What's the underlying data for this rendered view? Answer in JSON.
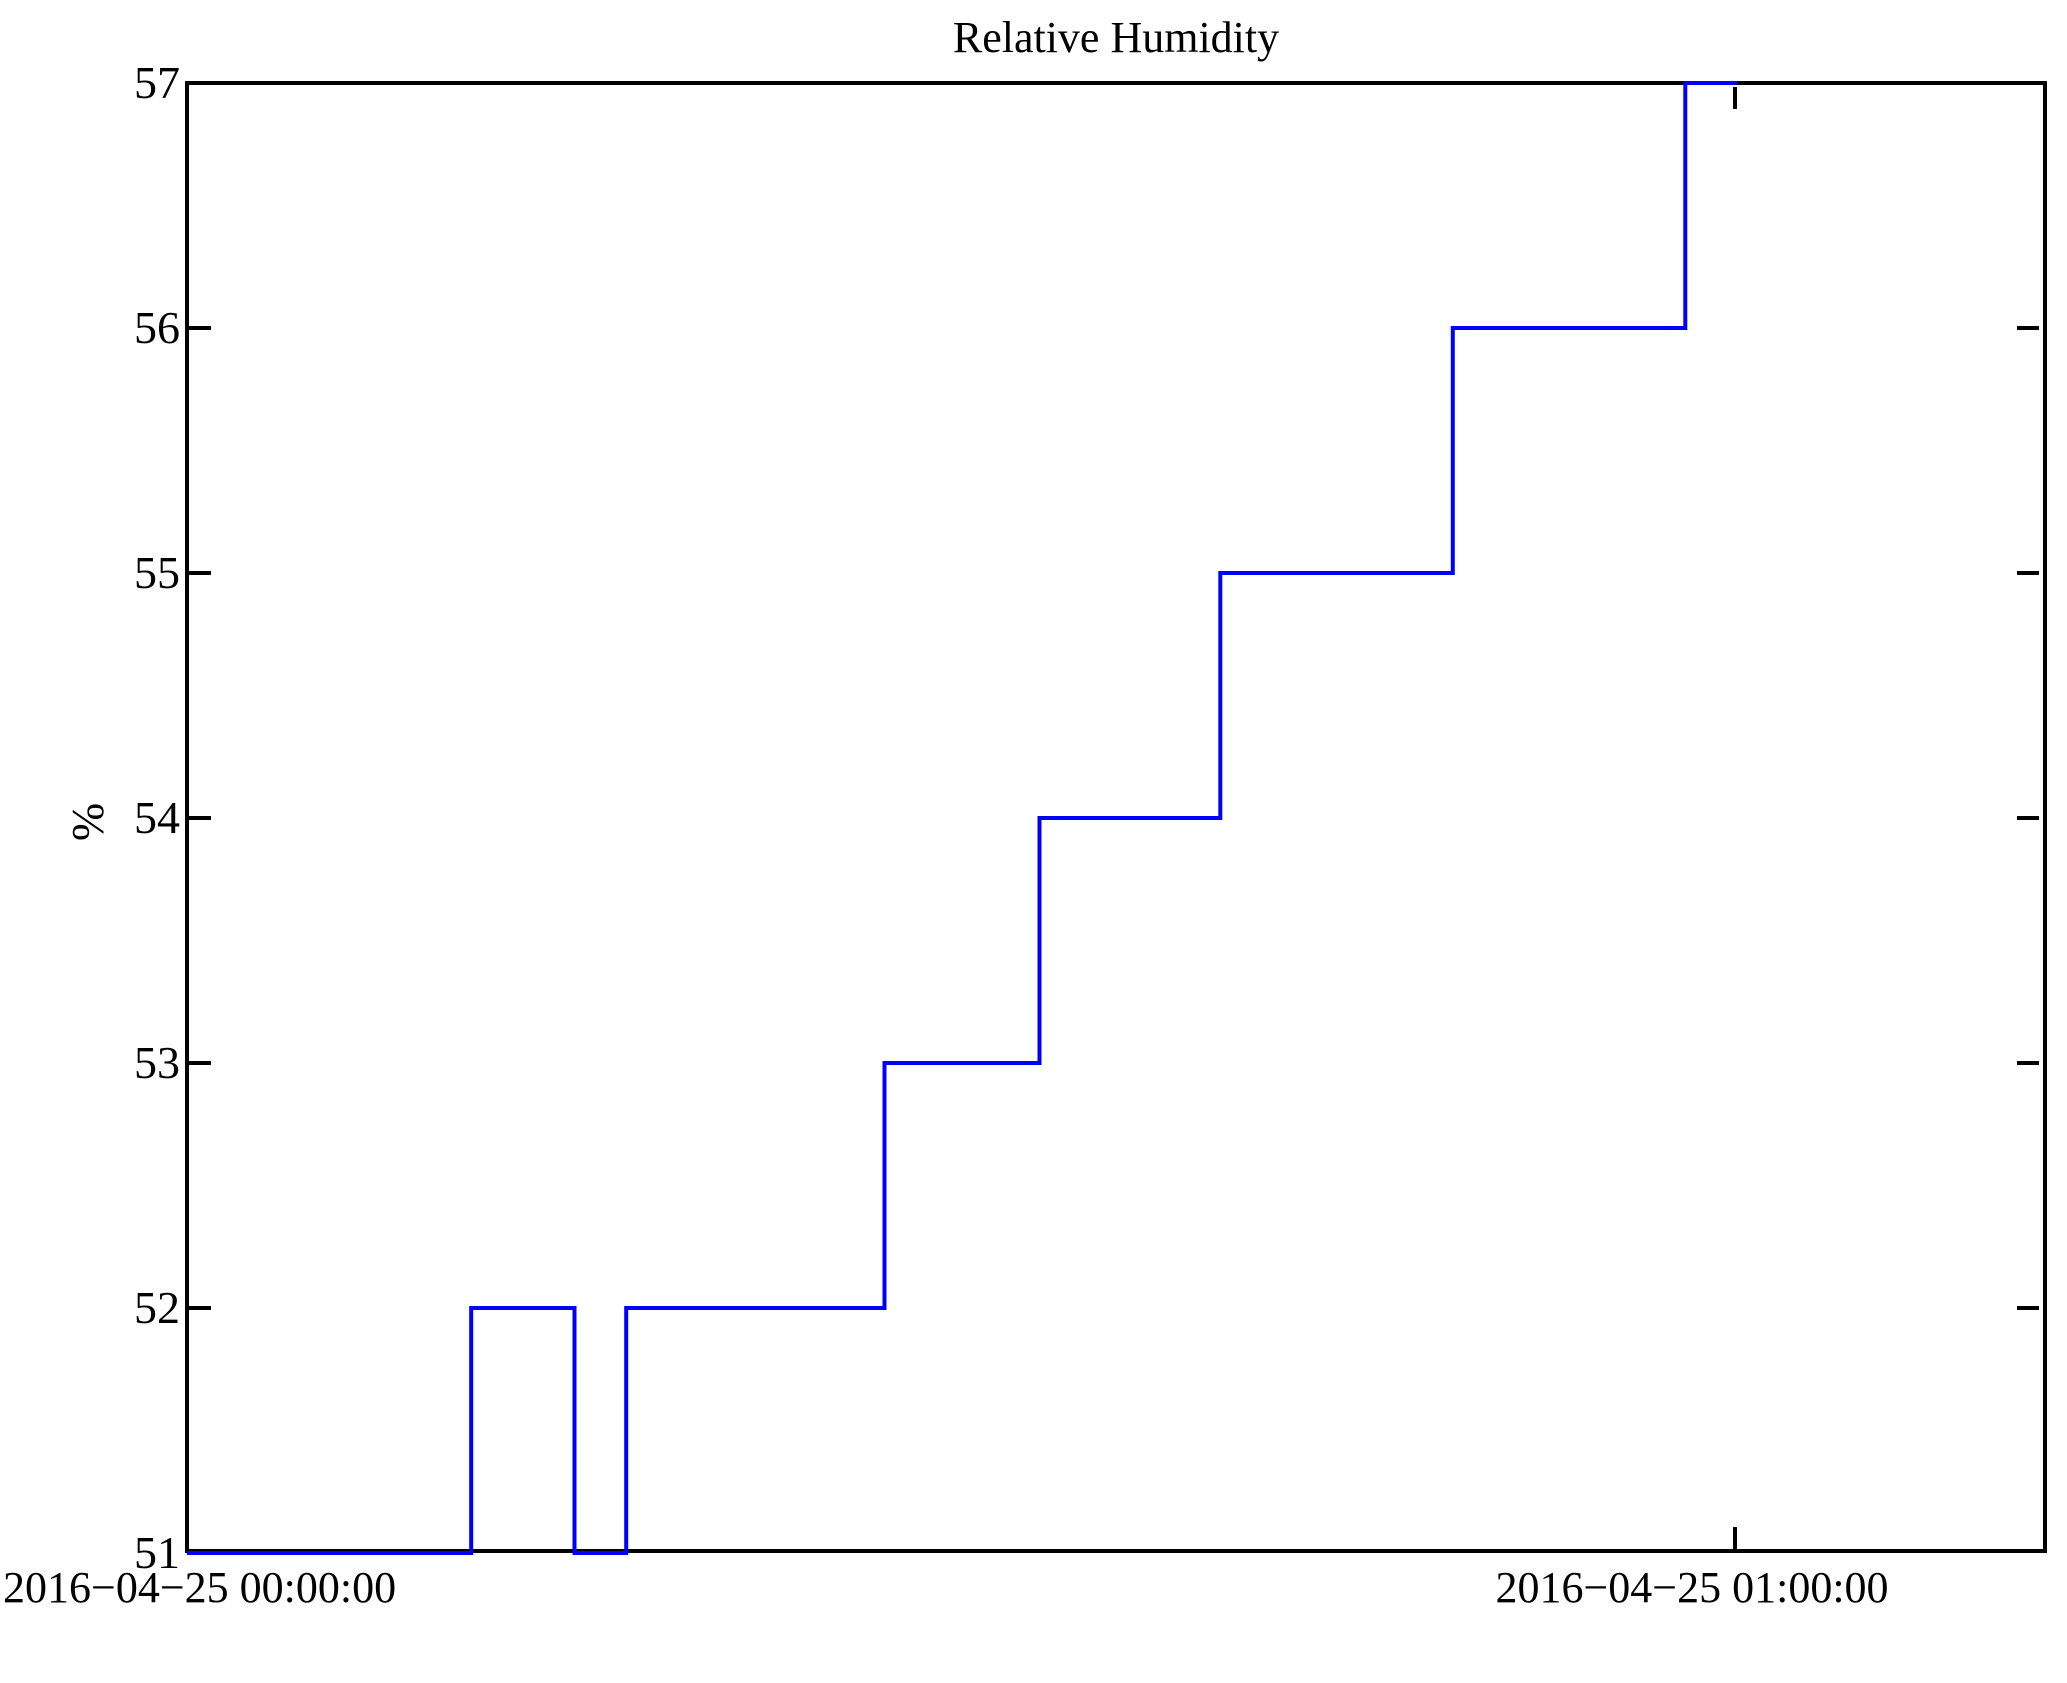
{
  "chart_data": {
    "type": "line",
    "subtype": "step-post",
    "title": "Relative Humidity",
    "xlabel": "",
    "ylabel": "%",
    "x_tick_labels": [
      "2016−04−25 00:00:00",
      "2016−04−25 01:00:00"
    ],
    "y_tick_labels": [
      "57",
      "56",
      "55",
      "54",
      "53",
      "52",
      "51"
    ],
    "ylim": [
      51,
      57
    ],
    "xlim_minutes_from_start": [
      0,
      72
    ],
    "grid": false,
    "legend": "none",
    "line_color": "#0000f8",
    "axis_color": "#000000",
    "background_color": "#ffffff",
    "series": [
      {
        "name": "Relative Humidity (%)",
        "points": [
          {
            "time": "00:00:00",
            "value": 51
          },
          {
            "time": "00:11:00",
            "value": 52
          },
          {
            "time": "00:15:00",
            "value": 51
          },
          {
            "time": "00:17:00",
            "value": 52
          },
          {
            "time": "00:27:00",
            "value": 53
          },
          {
            "time": "00:33:00",
            "value": 54
          },
          {
            "time": "00:40:00",
            "value": 55
          },
          {
            "time": "00:49:00",
            "value": 56
          },
          {
            "time": "00:58:00",
            "value": 57
          },
          {
            "time": "01:00:00",
            "value": 57
          }
        ]
      }
    ]
  }
}
